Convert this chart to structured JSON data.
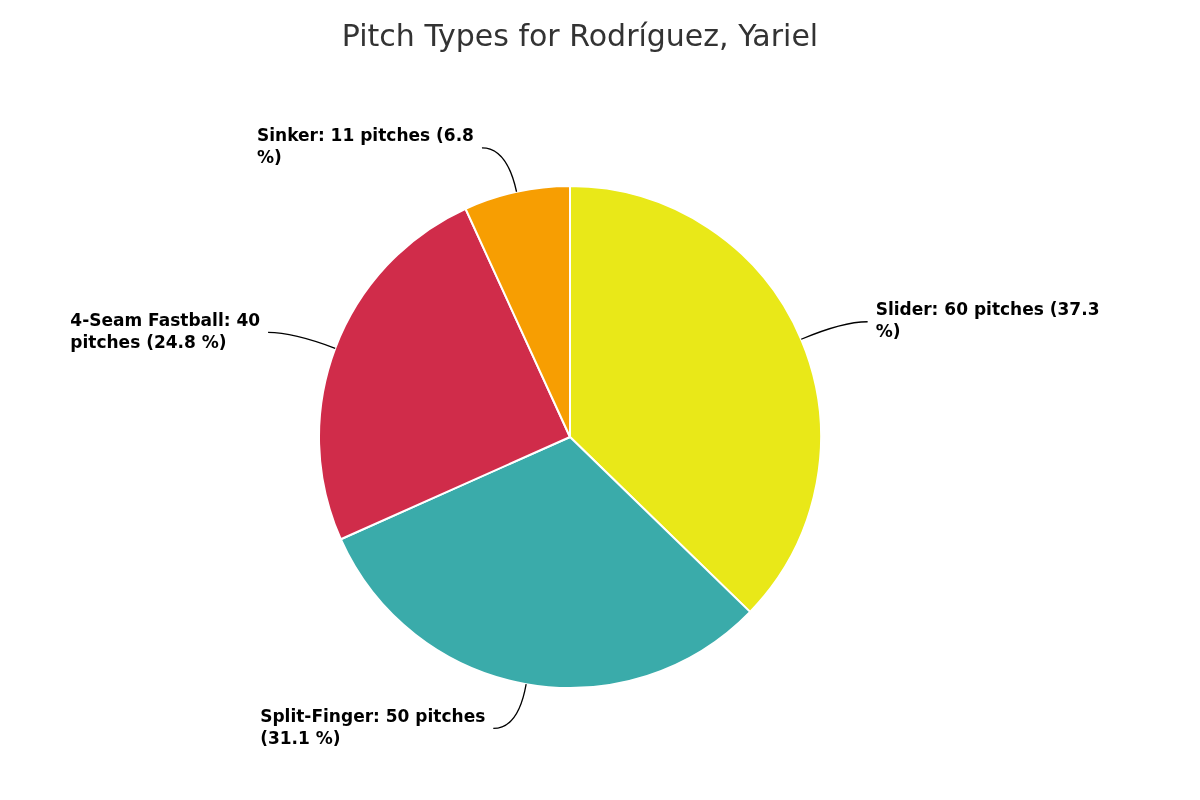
{
  "chart_data": {
    "type": "pie",
    "title": "Pitch Types for Rodríguez, Yariel",
    "categories": [
      "Slider",
      "Split-Finger",
      "4-Seam Fastball",
      "Sinker"
    ],
    "values": [
      60,
      50,
      40,
      11
    ],
    "colors": [
      "#e9e818",
      "#3aabaa",
      "#d02c4a",
      "#f79e02"
    ],
    "value_labels": [
      "60 pitches (37.3 %)",
      "50 pitches (31.1 %)",
      "40 pitches (24.8 %)",
      "11 pitches (6.8 %)"
    ],
    "legend": false
  }
}
